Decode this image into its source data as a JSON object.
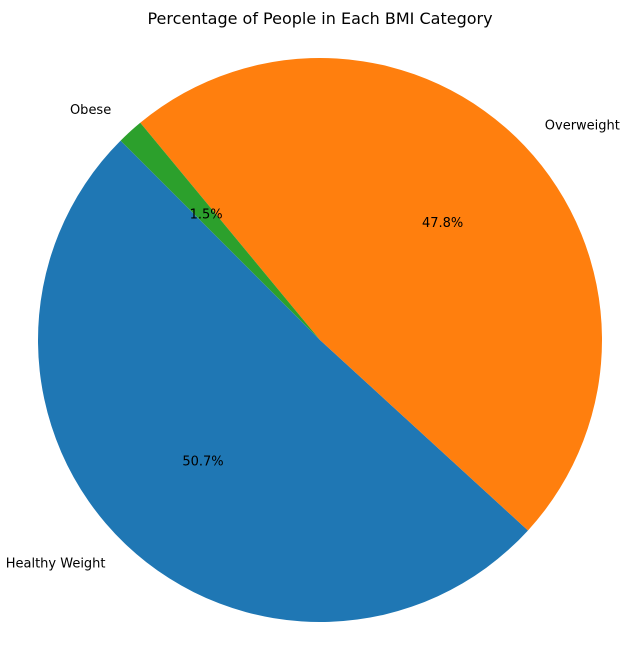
{
  "chart_data": {
    "type": "pie",
    "title": "Percentage of People in Each BMI Category",
    "start_angle_deg": 135,
    "direction": "counterclockwise",
    "slices": [
      {
        "label": "Healthy Weight",
        "value": 50.7,
        "pct_label": "50.7%",
        "color": "#1f77b4"
      },
      {
        "label": "Overweight",
        "value": 47.8,
        "pct_label": "47.8%",
        "color": "#ff7f0e"
      },
      {
        "label": "Obese",
        "value": 1.5,
        "pct_label": "1.5%",
        "color": "#2ca02c"
      }
    ]
  }
}
